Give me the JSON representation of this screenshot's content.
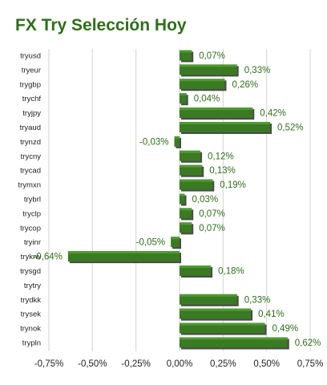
{
  "chart_data": {
    "type": "bar",
    "orientation": "horizontal",
    "title": "FX Try Selección Hoy",
    "categories": [
      "tryusd",
      "tryeur",
      "trygbp",
      "trychf",
      "tryjpy",
      "tryaud",
      "trynzd",
      "trycny",
      "trycad",
      "trymxn",
      "trybrl",
      "tryclp",
      "trycop",
      "tryinr",
      "trykrw",
      "trysgd",
      "trytry",
      "trydkk",
      "trysek",
      "trynok",
      "trypln"
    ],
    "values": [
      0.07,
      0.33,
      0.26,
      0.04,
      0.42,
      0.52,
      -0.03,
      0.12,
      0.13,
      0.19,
      0.03,
      0.07,
      0.07,
      -0.05,
      -0.64,
      0.18,
      null,
      0.33,
      0.41,
      0.49,
      0.62
    ],
    "value_labels": [
      "0,07%",
      "0,33%",
      "0,26%",
      "0,04%",
      "0,42%",
      "0,52%",
      "-0,03%",
      "0,12%",
      "0,13%",
      "0,19%",
      "0,03%",
      "0,07%",
      "0,07%",
      "-0,05%",
      "-0,64%",
      "0,18%",
      "",
      "0,33%",
      "0,41%",
      "0,49%",
      "0,62%"
    ],
    "x_ticks": [
      -0.75,
      -0.5,
      -0.25,
      0,
      0.25,
      0.5,
      0.75
    ],
    "x_tick_labels": [
      "-0,75%",
      "-0,50%",
      "-0,25%",
      "0,00%",
      "0,25%",
      "0,50%",
      "0,75%"
    ],
    "xlim": [
      -0.75,
      0.75
    ],
    "xlabel": "",
    "ylabel": "",
    "grid": true,
    "legend": "none",
    "colors": {
      "bar": "#3a7a22",
      "bar_highlight": "#4f9a33",
      "bar_shadow": "#4a4a4a",
      "title": "#2f6e1a",
      "value_label": "#2f6e1a",
      "grid": "#d3d3d3"
    }
  }
}
